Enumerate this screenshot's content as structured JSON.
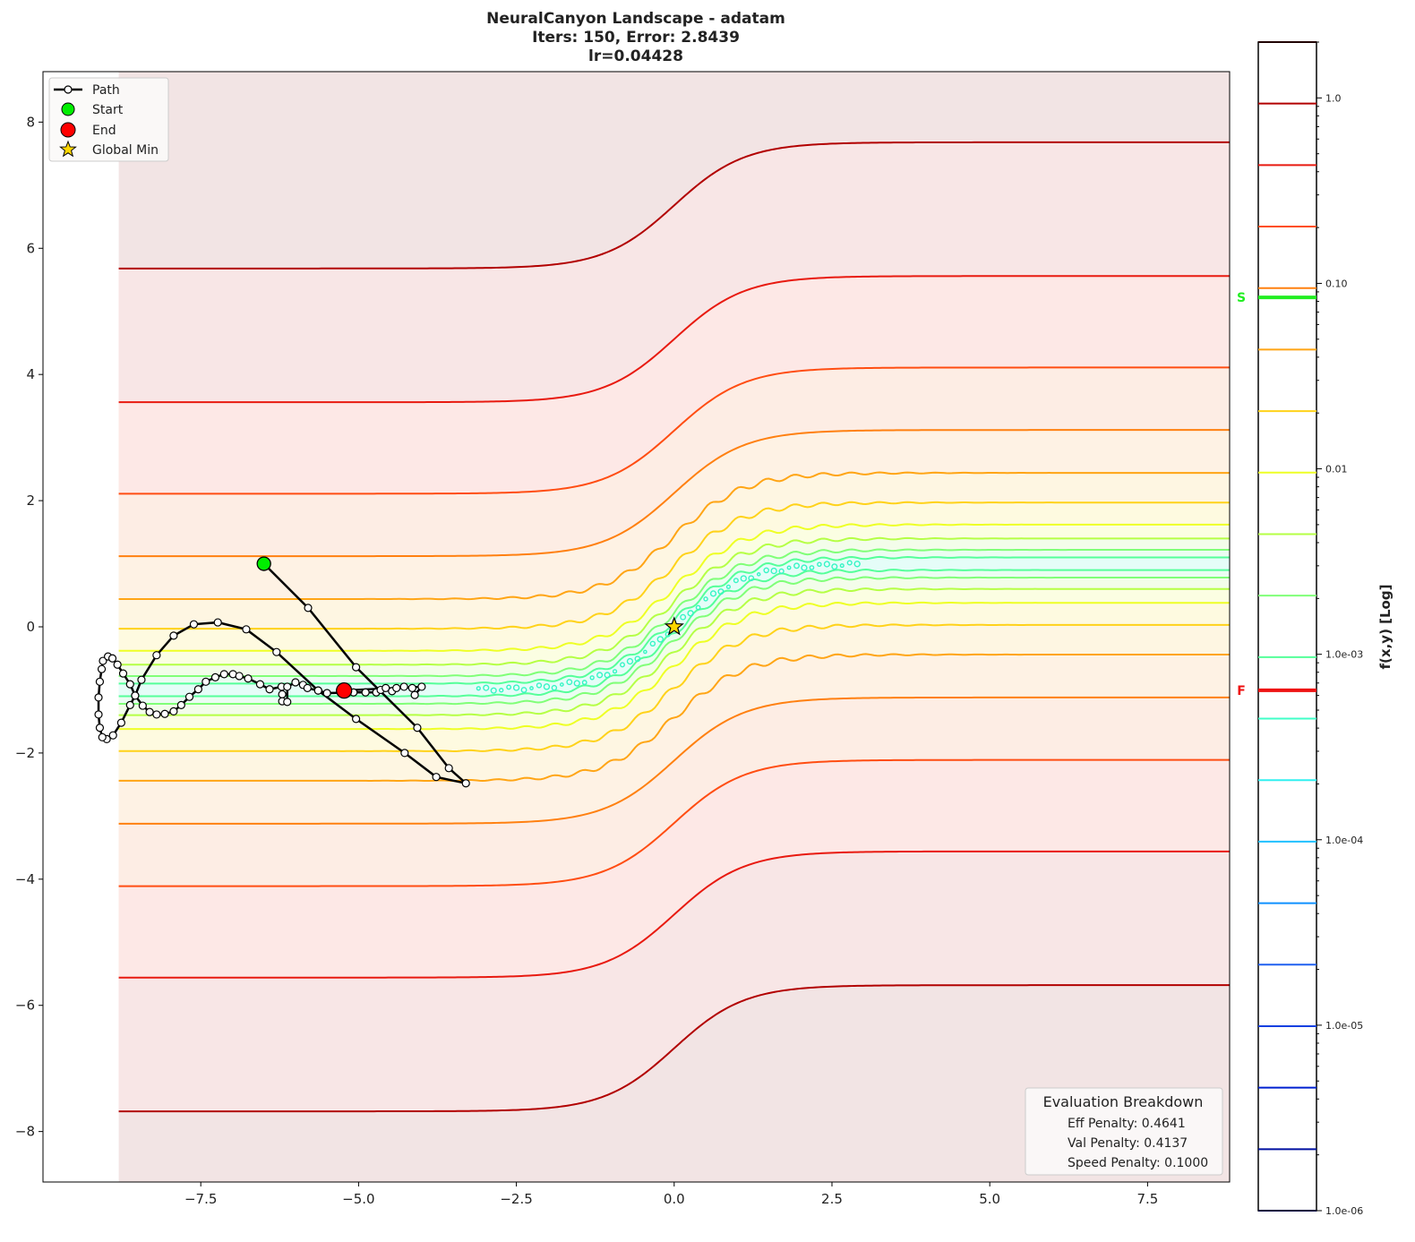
{
  "chart_data": {
    "type": "line",
    "title_lines": [
      "NeuralCanyon Landscape - adatam",
      "Iters: 150, Error: 2.8439",
      "lr=0.04428"
    ],
    "xlabel": "",
    "ylabel": "",
    "xlim": [
      -10.0,
      8.8
    ],
    "ylim": [
      -8.8,
      8.8
    ],
    "x_ticks": [
      -7.5,
      -5.0,
      -2.5,
      0.0,
      2.5,
      5.0,
      7.5
    ],
    "x_tick_labels": [
      "−7.5",
      "−5.0",
      "−2.5",
      "0.0",
      "2.5",
      "5.0",
      "7.5"
    ],
    "y_ticks": [
      -8,
      -6,
      -4,
      -2,
      0,
      2,
      4,
      6,
      8
    ],
    "y_tick_labels": [
      "−8",
      "−6",
      "−4",
      "−2",
      "0",
      "2",
      "4",
      "6",
      "8"
    ],
    "grid": false,
    "domain_x": [
      -8.8,
      8.8
    ],
    "valley_center": {
      "left": -1.0,
      "right": 1.0,
      "transition_x": 0.0
    },
    "contours": [
      {
        "level": 0.93,
        "offset": 6.68,
        "color": "#b20000",
        "fill": "#f8e6e6"
      },
      {
        "level": 0.43,
        "offset": 4.56,
        "color": "#e81a10",
        "fill": "#fde8e6"
      },
      {
        "level": 0.2,
        "offset": 3.11,
        "color": "#ff4d12",
        "fill": "#fdede4"
      },
      {
        "level": 0.094,
        "offset": 2.12,
        "color": "#ff8010",
        "fill": "#fef2e4"
      },
      {
        "level": 0.044,
        "offset": 1.44,
        "color": "#ffa515",
        "fill": "#fef6e2"
      },
      {
        "level": 0.02,
        "offset": 0.97,
        "color": "#ffd21a",
        "fill": "#fefae0"
      },
      {
        "level": 0.0094,
        "offset": 0.62,
        "color": "#eeff25",
        "fill": "#fbfee2"
      },
      {
        "level": 0.0044,
        "offset": 0.4,
        "color": "#b5ff45",
        "fill": "#f3fdea"
      },
      {
        "level": 0.002,
        "offset": 0.22,
        "color": "#80ff78",
        "fill": "#ebfdf2"
      },
      {
        "level": 0.00094,
        "offset": 0.1,
        "color": "#55ff9a",
        "fill": "#e5fdf8"
      }
    ],
    "outer_fill": "#f2e4e4",
    "path": {
      "name": "Path",
      "x": [
        -6.5,
        -5.8,
        -5.04,
        -4.07,
        -3.57,
        -3.3,
        -3.77,
        -4.27,
        -5.04,
        -5.64,
        -6.3,
        -6.78,
        -7.23,
        -7.61,
        -7.93,
        -8.2,
        -8.44,
        -8.54,
        -8.62,
        -8.76,
        -8.89,
        -8.99,
        -9.06,
        -9.1,
        -9.12,
        -9.12,
        -9.1,
        -9.07,
        -9.05,
        -8.97,
        -8.9,
        -8.82,
        -8.73,
        -8.62,
        -8.54,
        -8.42,
        -8.31,
        -8.2,
        -8.07,
        -7.93,
        -7.81,
        -7.68,
        -7.54,
        -7.42,
        -7.27,
        -7.13,
        -6.99,
        -6.89,
        -6.75,
        -6.56,
        -6.41,
        -6.22,
        -6.21,
        -6.21,
        -6.13,
        -6.13,
        -6.0,
        -5.88,
        -5.81,
        -5.64,
        -5.5,
        -5.08,
        -4.89,
        -4.72,
        -4.65,
        -4.57,
        -4.47,
        -4.4,
        -4.28,
        -4.15,
        -4.11,
        -4.0,
        -5.23
      ],
      "y": [
        1.0,
        0.3,
        -0.64,
        -1.6,
        -2.24,
        -2.48,
        -2.38,
        -2.0,
        -1.46,
        -1.01,
        -0.4,
        -0.04,
        0.07,
        0.04,
        -0.14,
        -0.45,
        -0.84,
        -1.09,
        -1.24,
        -1.52,
        -1.72,
        -1.78,
        -1.75,
        -1.6,
        -1.39,
        -1.12,
        -0.87,
        -0.67,
        -0.54,
        -0.47,
        -0.5,
        -0.6,
        -0.74,
        -0.91,
        -1.09,
        -1.25,
        -1.35,
        -1.39,
        -1.38,
        -1.34,
        -1.24,
        -1.11,
        -0.99,
        -0.87,
        -0.8,
        -0.75,
        -0.75,
        -0.78,
        -0.82,
        -0.91,
        -0.99,
        -0.95,
        -1.07,
        -1.18,
        -1.19,
        -0.95,
        -0.88,
        -0.92,
        -0.97,
        -1.01,
        -1.05,
        -1.04,
        -1.04,
        -1.04,
        -1.0,
        -0.97,
        -1.02,
        -0.97,
        -0.95,
        -0.97,
        -1.08,
        -0.95,
        -1.01
      ],
      "color": "#000000"
    },
    "start": {
      "name": "Start",
      "x": -6.5,
      "y": 1.0,
      "color": "#00ee00"
    },
    "end": {
      "name": "End",
      "x": -5.23,
      "y": -1.01,
      "color": "#ff0000"
    },
    "global_min": {
      "name": "Global Min",
      "x": 0.0,
      "y": 0.0,
      "color": "#ffd700"
    },
    "legend": {
      "placement": "top-left",
      "entries": [
        "Path",
        "Start",
        "End",
        "Global Min"
      ]
    },
    "annotation_box": {
      "title": "Evaluation Breakdown",
      "lines": [
        "Eff Penalty: 0.4641",
        "Val Penalty: 0.4137",
        "Speed Penalty: 0.1000"
      ],
      "placement": "bottom-right"
    },
    "colorbar": {
      "label": "f(x,y) [Log]",
      "scale": "log",
      "range": [
        1e-06,
        2.0
      ],
      "tick_values": [
        1.0,
        0.1,
        0.01,
        0.001,
        0.0001,
        1e-05,
        1e-06
      ],
      "tick_labels": [
        "1.0",
        "0.10",
        "0.01",
        "1.0e-03",
        "1.0e-04",
        "1.0e-05",
        "1.0e-06"
      ],
      "level_colors": [
        "#200000",
        "#b20000",
        "#e81a10",
        "#ff4d12",
        "#ff8010",
        "#ffa515",
        "#ffd21a",
        "#eeff25",
        "#b5ff45",
        "#80ff78",
        "#55ff9a",
        "#40ffc8",
        "#30f0f0",
        "#20c0ff",
        "#1090ff",
        "#2060f0",
        "#1040e0",
        "#0020d0",
        "#0010a0",
        "#000040"
      ],
      "markers": [
        {
          "label": "S",
          "value": 0.084,
          "color": "#22ee22"
        },
        {
          "label": "F",
          "value": 0.00064,
          "color": "#ee1111"
        }
      ]
    }
  }
}
